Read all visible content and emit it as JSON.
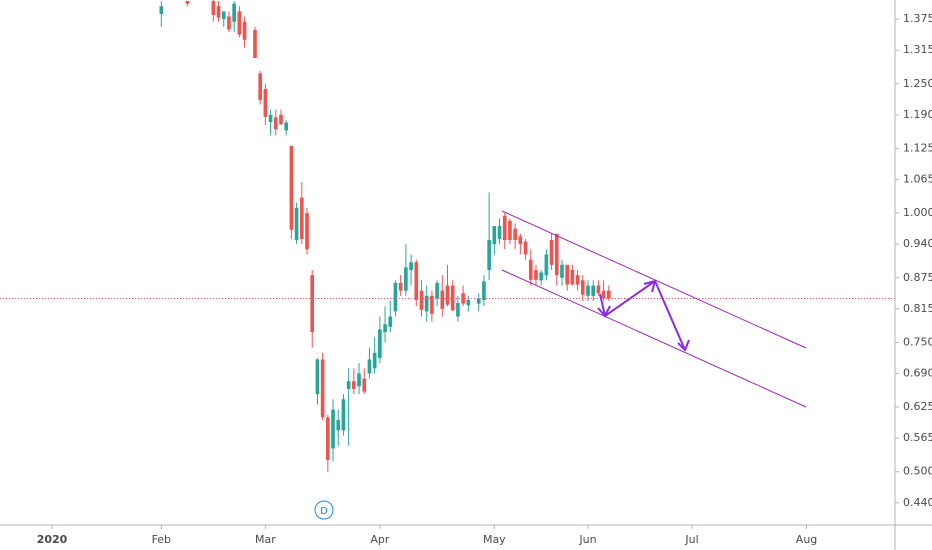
{
  "chart_data": {
    "type": "candlestick",
    "up_color": "#26a69a",
    "down_color": "#ef5350",
    "marker": "D",
    "xlim": [
      0,
      172
    ],
    "xticks": [
      {
        "value": 10,
        "label": "2020"
      },
      {
        "value": 31,
        "label": "Feb"
      },
      {
        "value": 51,
        "label": "Mar"
      },
      {
        "value": 73,
        "label": "Apr"
      },
      {
        "value": 95,
        "label": "May"
      },
      {
        "value": 113,
        "label": "Jun"
      },
      {
        "value": 133,
        "label": "Jul"
      },
      {
        "value": 155,
        "label": "Aug"
      }
    ],
    "ylim": [
      0.397,
      1.412
    ],
    "yticks": [
      1.375,
      1.315,
      {
        "value": 1.25,
        "label": "1.250"
      },
      {
        "value": 1.19,
        "label": "1.190"
      },
      1.125,
      1.065,
      {
        "value": 1,
        "label": "1.000"
      },
      {
        "value": 0.94,
        "label": "0.940"
      },
      0.875,
      0.815,
      {
        "value": 0.75,
        "label": "0.750"
      },
      {
        "value": 0.69,
        "label": "0.690"
      },
      0.625,
      0.565,
      {
        "value": 0.5,
        "label": "0.500"
      },
      {
        "value": 0.44,
        "label": "0.440"
      }
    ],
    "x": [
      31,
      36,
      41,
      42,
      43,
      44,
      45,
      46,
      47,
      49,
      50,
      51,
      52,
      53,
      54,
      55,
      56,
      57,
      58,
      59,
      60,
      61,
      62,
      63,
      64,
      65,
      66,
      67,
      68,
      69,
      70,
      71,
      72,
      73,
      74,
      75,
      76,
      77,
      78,
      79,
      80,
      81,
      82,
      83,
      84,
      85,
      86,
      87,
      88,
      89,
      90,
      92,
      93,
      94,
      95,
      96,
      97,
      98,
      99,
      100,
      101,
      102,
      103,
      104,
      105,
      106,
      107,
      108,
      109,
      110,
      111,
      112,
      113,
      114,
      115,
      116,
      117
    ],
    "open": [
      1.385,
      1.41,
      1.41,
      1.4,
      1.375,
      1.38,
      1.37,
      1.39,
      1.37,
      1.354,
      1.27,
      1.24,
      1.176,
      1.185,
      1.19,
      1.16,
      1.13,
      0.948,
      1.03,
      1.0,
      0.88,
      0.65,
      0.717,
      0.605,
      0.545,
      0.58,
      0.58,
      0.66,
      0.675,
      0.665,
      0.68,
      0.69,
      0.7,
      0.72,
      0.77,
      0.78,
      0.81,
      0.865,
      0.85,
      0.89,
      0.905,
      0.85,
      0.81,
      0.84,
      0.835,
      0.85,
      0.86,
      0.86,
      0.8,
      0.845,
      0.822,
      0.825,
      0.832,
      0.89,
      0.94,
      0.95,
      0.995,
      0.985,
      0.97,
      0.955,
      0.945,
      0.91,
      0.89,
      0.87,
      0.88,
      0.948,
      0.96,
      0.875,
      0.9,
      0.89,
      0.88,
      0.87,
      0.84,
      0.84,
      0.86,
      0.85,
      0.85
    ],
    "high": [
      1.41,
      1.41,
      1.412,
      1.41,
      1.39,
      1.39,
      1.41,
      1.4,
      1.38,
      1.36,
      1.275,
      1.25,
      1.2,
      1.2,
      1.2,
      1.18,
      1.13,
      1.02,
      1.06,
      1.01,
      0.89,
      0.72,
      0.73,
      0.61,
      0.64,
      0.62,
      0.65,
      0.7,
      0.7,
      0.71,
      0.7,
      0.74,
      0.76,
      0.8,
      0.82,
      0.83,
      0.87,
      0.88,
      0.94,
      0.92,
      0.91,
      0.87,
      0.86,
      0.85,
      0.87,
      0.88,
      0.9,
      0.87,
      0.84,
      0.86,
      0.84,
      0.845,
      0.88,
      1.04,
      0.97,
      0.99,
      1.0,
      0.99,
      0.98,
      0.96,
      0.95,
      0.93,
      0.9,
      0.89,
      0.93,
      0.96,
      0.96,
      0.91,
      0.9,
      0.9,
      0.89,
      0.88,
      0.87,
      0.87,
      0.87,
      0.87,
      0.86
    ],
    "low": [
      1.36,
      1.4,
      1.37,
      1.37,
      1.36,
      1.35,
      1.35,
      1.34,
      1.32,
      1.3,
      1.21,
      1.17,
      1.15,
      1.15,
      1.17,
      1.15,
      0.95,
      0.94,
      0.94,
      0.92,
      0.74,
      0.63,
      0.6,
      0.5,
      0.52,
      0.55,
      0.57,
      0.55,
      0.65,
      0.65,
      0.65,
      0.68,
      0.69,
      0.71,
      0.75,
      0.77,
      0.8,
      0.84,
      0.84,
      0.86,
      0.82,
      0.8,
      0.79,
      0.79,
      0.82,
      0.8,
      0.82,
      0.81,
      0.79,
      0.82,
      0.81,
      0.81,
      0.82,
      0.87,
      0.92,
      0.94,
      0.93,
      0.94,
      0.93,
      0.92,
      0.91,
      0.86,
      0.86,
      0.86,
      0.87,
      0.89,
      0.86,
      0.86,
      0.85,
      0.86,
      0.85,
      0.83,
      0.83,
      0.83,
      0.84,
      0.83,
      0.83
    ],
    "close": [
      1.4,
      1.405,
      1.383,
      1.378,
      1.39,
      1.355,
      1.405,
      1.345,
      1.335,
      1.3,
      1.219,
      1.186,
      1.19,
      1.162,
      1.172,
      1.175,
      0.968,
      1.01,
      0.95,
      0.93,
      0.77,
      0.717,
      0.605,
      0.523,
      0.62,
      0.6,
      0.64,
      0.675,
      0.66,
      0.69,
      0.655,
      0.717,
      0.73,
      0.775,
      0.785,
      0.8,
      0.865,
      0.85,
      0.895,
      0.905,
      0.832,
      0.813,
      0.84,
      0.805,
      0.865,
      0.815,
      0.823,
      0.812,
      0.826,
      0.825,
      0.832,
      0.835,
      0.868,
      0.948,
      0.975,
      0.975,
      0.948,
      0.948,
      0.948,
      0.94,
      0.92,
      0.871,
      0.871,
      0.885,
      0.92,
      0.9,
      0.88,
      0.9,
      0.862,
      0.862,
      0.862,
      0.842,
      0.86,
      0.86,
      0.845,
      0.835,
      0.835
    ]
  }
}
